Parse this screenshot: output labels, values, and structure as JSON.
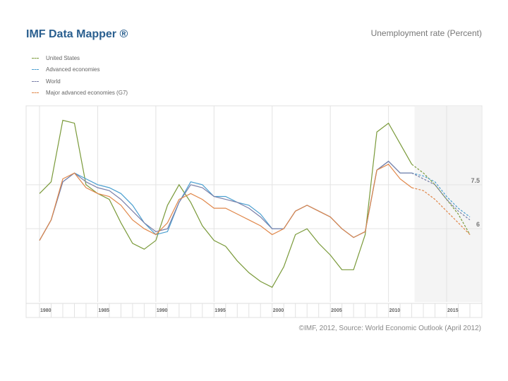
{
  "header": {
    "title": "IMF Data Mapper ®",
    "subtitle": "Unemployment rate (Percent)"
  },
  "footer": {
    "source": "©IMF, 2012, Source: World Economic Outlook (April 2012)"
  },
  "colors": {
    "United States": "#7a9a3a",
    "Advanced economies": "#4a9fd0",
    "World": "#7a7fa8",
    "Major advanced economies (G7)": "#e0874a",
    "grid": "#e3e3e3",
    "forecast_shade": "#f4f4f4"
  },
  "chart_data": {
    "type": "line",
    "title": "Unemployment rate (Percent)",
    "xlim": [
      1980,
      2017
    ],
    "ylim": [
      3.5,
      10.0
    ],
    "grid": true,
    "legend_position": "top-left",
    "forecast_start": 2012,
    "y_ticks": [
      6,
      7.5
    ],
    "y_tick_labels": [
      "6",
      "7.5"
    ],
    "x_ticks": [
      1980,
      1985,
      1990,
      1995,
      2000,
      2005,
      2010,
      2015
    ],
    "x_tick_labels": [
      "1980",
      "1985",
      "1990",
      "1995",
      "2000",
      "2005",
      "2010",
      "2015"
    ],
    "x": [
      1980,
      1981,
      1982,
      1983,
      1984,
      1985,
      1986,
      1987,
      1988,
      1989,
      1990,
      1991,
      1992,
      1993,
      1994,
      1995,
      1996,
      1997,
      1998,
      1999,
      2000,
      2001,
      2002,
      2003,
      2004,
      2005,
      2006,
      2007,
      2008,
      2009,
      2010,
      2011,
      2012,
      2013,
      2014,
      2015,
      2016,
      2017
    ],
    "series": [
      {
        "name": "United States",
        "values": [
          7.2,
          7.6,
          9.7,
          9.6,
          7.5,
          7.2,
          7.0,
          6.2,
          5.5,
          5.3,
          5.6,
          6.8,
          7.5,
          6.9,
          6.1,
          5.6,
          5.4,
          4.9,
          4.5,
          4.2,
          4.0,
          4.7,
          5.8,
          6.0,
          5.5,
          5.1,
          4.6,
          4.6,
          5.8,
          9.3,
          9.6,
          8.9,
          8.2,
          7.9,
          7.5,
          7.0,
          6.5,
          5.8
        ]
      },
      {
        "name": "Advanced economies",
        "values": [
          5.6,
          6.3,
          7.6,
          7.9,
          7.7,
          7.5,
          7.4,
          7.2,
          6.8,
          6.2,
          5.8,
          5.9,
          6.9,
          7.6,
          7.5,
          7.1,
          7.1,
          6.9,
          6.8,
          6.5,
          6.0,
          6.0,
          6.6,
          6.8,
          6.6,
          6.4,
          6.0,
          5.7,
          5.9,
          8.0,
          8.3,
          7.9,
          7.9,
          7.8,
          7.6,
          7.1,
          6.7,
          6.4
        ]
      },
      {
        "name": "World",
        "values": [
          5.6,
          6.3,
          7.6,
          7.9,
          7.6,
          7.4,
          7.3,
          7.0,
          6.6,
          6.2,
          5.9,
          6.0,
          6.9,
          7.5,
          7.4,
          7.1,
          7.0,
          6.9,
          6.7,
          6.4,
          6.0,
          6.0,
          6.6,
          6.8,
          6.6,
          6.4,
          6.0,
          5.7,
          5.9,
          8.0,
          8.3,
          7.9,
          7.9,
          7.7,
          7.5,
          7.0,
          6.6,
          6.3
        ]
      },
      {
        "name": "Major advanced economies (G7)",
        "values": [
          5.6,
          6.3,
          7.7,
          7.9,
          7.4,
          7.2,
          7.1,
          6.8,
          6.3,
          6.0,
          5.8,
          6.2,
          7.0,
          7.2,
          7.0,
          6.7,
          6.7,
          6.5,
          6.3,
          6.1,
          5.8,
          6.0,
          6.6,
          6.8,
          6.6,
          6.4,
          6.0,
          5.7,
          5.9,
          8.0,
          8.2,
          7.7,
          7.4,
          7.3,
          7.0,
          6.6,
          6.2,
          5.8
        ]
      }
    ]
  }
}
